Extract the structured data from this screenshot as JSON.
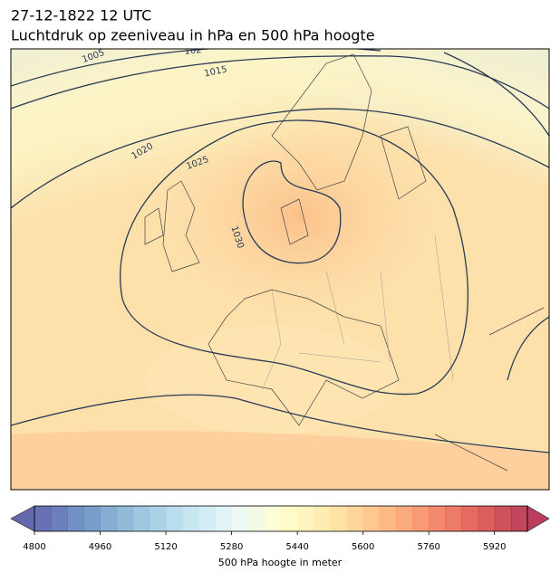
{
  "header": {
    "date": "27-12-1822 12 UTC",
    "title": "Luchtdruk op zeeniveau in hPa en 500 hPa hoogte"
  },
  "map": {
    "contour_labels": [
      1005,
      102,
      1015,
      1020,
      1025,
      1030
    ]
  },
  "chart_data": {
    "type": "colorbar",
    "label": "500 hPa hoogte in meter",
    "xlim": [
      4800,
      6000
    ],
    "xticks": [
      4800,
      4960,
      5120,
      5280,
      5440,
      5600,
      5760,
      5920
    ],
    "step": 40,
    "colors": [
      "#313695",
      "#4575b4",
      "#74add1",
      "#abd9e9",
      "#e0f3f8",
      "#ffffbf",
      "#fee090",
      "#fdae61",
      "#f46d43",
      "#d73027",
      "#a50026"
    ]
  }
}
